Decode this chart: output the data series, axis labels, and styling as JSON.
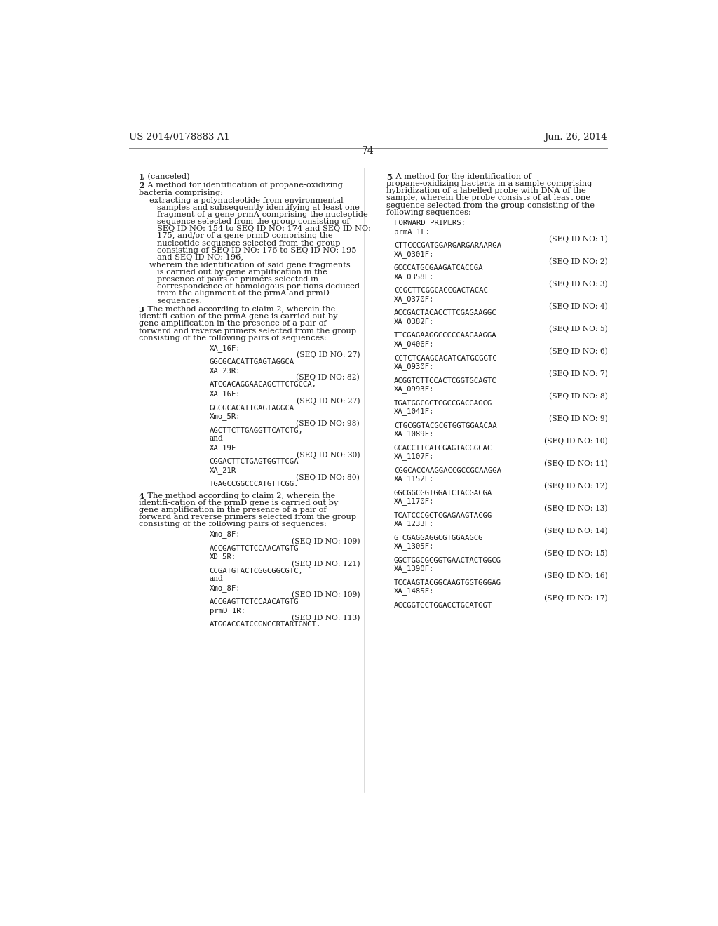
{
  "bg_color": "#ffffff",
  "header_left": "US 2014/0178883 A1",
  "header_right": "Jun. 26, 2014",
  "page_number": "74",
  "seq_entries_right": [
    {
      "name": "prmA_1F:",
      "seq_id": "(SEQ ID NO: 1)",
      "sequence": "CTTCCCGATGGARGARGARAARGA"
    },
    {
      "name": "XA_0301F:",
      "seq_id": "(SEQ ID NO: 2)",
      "sequence": "GCCCATGCGAAGATCACCGA"
    },
    {
      "name": "XA_0358F:",
      "seq_id": "(SEQ ID NO: 3)",
      "sequence": "CCGCTTCGGCACCGACTACAC"
    },
    {
      "name": "XA_0370F:",
      "seq_id": "(SEQ ID NO: 4)",
      "sequence": "ACCGACTACACCTTCGAGAAGGC"
    },
    {
      "name": "XA_0382F:",
      "seq_id": "(SEQ ID NO: 5)",
      "sequence": "TTCGAGAAGGCCCCCAAGAAGGA"
    },
    {
      "name": "XA_0406F:",
      "seq_id": "(SEQ ID NO: 6)",
      "sequence": "CCTCTCAAGCAGATCATGCGGTC"
    },
    {
      "name": "XA_0930F:",
      "seq_id": "(SEQ ID NO: 7)",
      "sequence": "ACGGTCTTCCACTCGGTGCAGTC"
    },
    {
      "name": "XA_0993F:",
      "seq_id": "(SEQ ID NO: 8)",
      "sequence": "TGATGGCGCTCGCCGACGAGCG"
    },
    {
      "name": "XA_1041F:",
      "seq_id": "(SEQ ID NO: 9)",
      "sequence": "CTGCGGTACGCGTGGTGGAACAA"
    },
    {
      "name": "XA_1089F:",
      "seq_id": "(SEQ ID NO: 10)",
      "sequence": "GCACCTTCATCGAGTACGGCAC"
    },
    {
      "name": "XA_1107F:",
      "seq_id": "(SEQ ID NO: 11)",
      "sequence": "CGGCACCAAGGACCGCCGCAAGGA"
    },
    {
      "name": "XA_1152F:",
      "seq_id": "(SEQ ID NO: 12)",
      "sequence": "GGCGGCGGTGGATCTACGACGA"
    },
    {
      "name": "XA_1170F:",
      "seq_id": "(SEQ ID NO: 13)",
      "sequence": "TCATCCCGCTCGAGAAGTACGG"
    },
    {
      "name": "XA_1233F:",
      "seq_id": "(SEQ ID NO: 14)",
      "sequence": "GTCGAGGAGGCGTGGAAGCG"
    },
    {
      "name": "XA_1305F:",
      "seq_id": "(SEQ ID NO: 15)",
      "sequence": "GGCTGGCGCGGTGAACTACTGGCG"
    },
    {
      "name": "XA_1390F:",
      "seq_id": "(SEQ ID NO: 16)",
      "sequence": "TCCAAGTACGGCAAGTGGTGGGAG"
    },
    {
      "name": "XA_1485F:",
      "seq_id": "(SEQ ID NO: 17)",
      "sequence": "ACCGGTGCTGGACCTGCATGGT"
    }
  ]
}
